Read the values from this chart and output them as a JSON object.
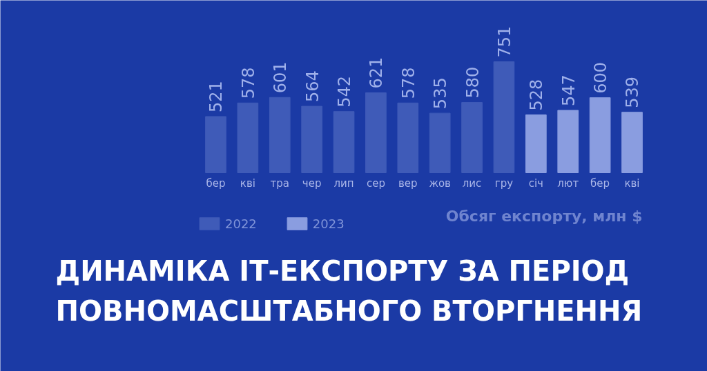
{
  "chart_data": {
    "type": "bar",
    "title": "ДИНАМІКА ІТ-ЕКСПОРТУ ЗА ПЕРІОД\nПОВНОМАСШТАБНОГО ВТОРГНЕННЯ",
    "annotations": [
      "Обсяг експорту, млн $"
    ],
    "categories": [
      "бер",
      "кві",
      "тра",
      "чер",
      "лип",
      "сер",
      "вер",
      "жов",
      "лис",
      "гру",
      "січ",
      "лют",
      "бер",
      "кві"
    ],
    "series": [
      {
        "name": "2022",
        "color": "#3f5bb8",
        "values": [
          521,
          578,
          601,
          564,
          542,
          621,
          578,
          535,
          580,
          751,
          null,
          null,
          null,
          null
        ]
      },
      {
        "name": "2023",
        "color": "#8a9de0",
        "values": [
          null,
          null,
          null,
          null,
          null,
          null,
          null,
          null,
          null,
          null,
          528,
          547,
          600,
          539
        ]
      }
    ],
    "ylim": [
      285,
      751
    ],
    "data_labels": true,
    "legend": "bottom left"
  }
}
